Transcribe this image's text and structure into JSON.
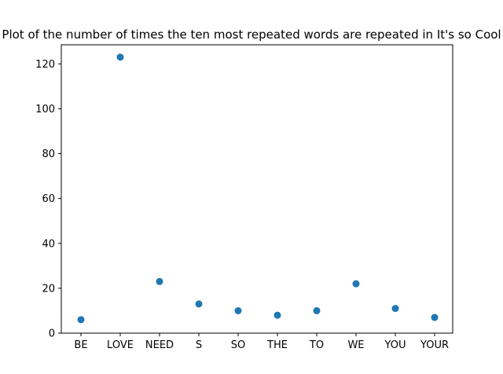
{
  "chart_data": {
    "type": "scatter",
    "title": "Plot of the number of times the ten most repeated words are repeated in It's so Cool",
    "xlabel": "",
    "ylabel": "",
    "categories": [
      "BE",
      "LOVE",
      "NEED",
      "S",
      "SO",
      "THE",
      "TO",
      "WE",
      "YOU",
      "YOUR"
    ],
    "values": [
      6,
      123,
      23,
      13,
      10,
      8,
      10,
      22,
      11,
      7
    ],
    "ylim": [
      0,
      128.5
    ],
    "yticks": [
      0,
      20,
      40,
      60,
      80,
      100,
      120
    ],
    "grid": false,
    "legend": "none",
    "marker_color": "#1f77b4"
  }
}
